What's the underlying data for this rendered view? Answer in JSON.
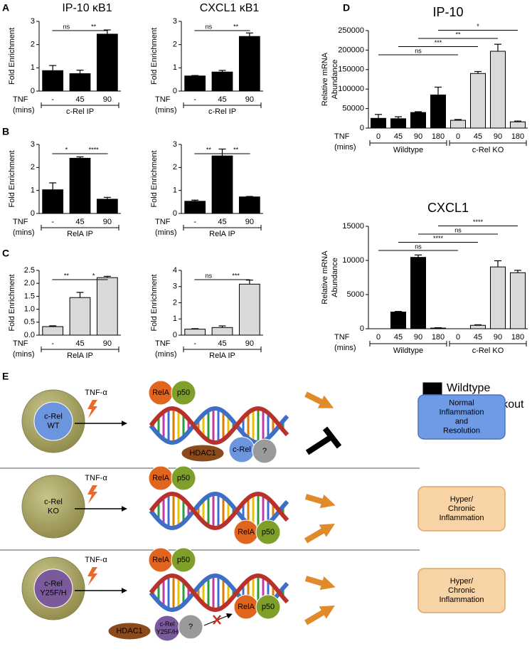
{
  "panels": [
    "A",
    "B",
    "C",
    "D",
    "E"
  ],
  "chart_data": [
    {
      "type": "bar",
      "title": "IP-10 κB1",
      "ylabel": "Fold  Enrichment",
      "x_row_label": "TNF",
      "x_row_unit": "(mins)",
      "categories": [
        "-",
        "45",
        "90"
      ],
      "values": [
        0.88,
        0.75,
        2.45
      ],
      "errors": [
        0.22,
        0.15,
        0.18
      ],
      "color": "#000000",
      "ylim": [
        0,
        3
      ],
      "yticks": [
        0,
        1,
        2,
        3
      ],
      "x_group_label": "c-Rel IP",
      "significance": [
        "ns",
        "**"
      ]
    },
    {
      "type": "bar",
      "title": "CXCL1 κB1",
      "ylabel": "Fold  Enrichment",
      "x_row_label": "TNF",
      "x_row_unit": "(mins)",
      "categories": [
        "-",
        "45",
        "90"
      ],
      "values": [
        0.65,
        0.82,
        2.35
      ],
      "errors": [
        0.02,
        0.07,
        0.15
      ],
      "color": "#000000",
      "ylim": [
        0,
        3
      ],
      "yticks": [
        0,
        1,
        2,
        3
      ],
      "x_group_label": "c-Rel IP",
      "significance": [
        "ns",
        "**"
      ]
    },
    {
      "type": "bar",
      "ylabel": "Fold  Enrichment",
      "x_row_label": "TNF",
      "x_row_unit": "(mins)",
      "categories": [
        "-",
        "45",
        "90"
      ],
      "values": [
        1.03,
        2.4,
        0.62
      ],
      "errors": [
        0.3,
        0.06,
        0.08
      ],
      "color": "#000000",
      "ylim": [
        0,
        3
      ],
      "yticks": [
        0,
        1,
        2,
        3
      ],
      "x_group_label": "RelA IP",
      "significance": [
        "*",
        "****"
      ]
    },
    {
      "type": "bar",
      "ylabel": "Fold  Enrichment",
      "x_row_label": "TNF",
      "x_row_unit": "(mins)",
      "categories": [
        "-",
        "45",
        "90"
      ],
      "values": [
        0.53,
        2.5,
        0.72
      ],
      "errors": [
        0.05,
        0.3,
        0.02
      ],
      "color": "#000000",
      "ylim": [
        0,
        3
      ],
      "yticks": [
        0,
        1,
        2,
        3
      ],
      "x_group_label": "RelA IP",
      "significance": [
        "**",
        "**"
      ]
    },
    {
      "type": "bar",
      "ylabel": "Fold  Enrichment",
      "x_row_label": "TNF",
      "x_row_unit": "(mins)",
      "categories": [
        "-",
        "45",
        "90"
      ],
      "values": [
        0.33,
        1.45,
        2.22
      ],
      "errors": [
        0.03,
        0.2,
        0.05
      ],
      "color": "#d9d9d9",
      "ylim": [
        0,
        2.5
      ],
      "yticks": [
        {
          "value": 0,
          "label": "0.0"
        },
        0.5,
        {
          "value": 1,
          "label": "1.0"
        },
        1.5,
        {
          "value": 2,
          "label": "2.0"
        },
        2.5
      ],
      "x_group_label": "RelA IP",
      "significance": [
        "**",
        "*"
      ]
    },
    {
      "type": "bar",
      "ylabel": "Fold  Enrichment",
      "x_row_label": "TNF",
      "x_row_unit": "(mins)",
      "categories": [
        "-",
        "45",
        "90"
      ],
      "values": [
        0.37,
        0.47,
        3.15
      ],
      "errors": [
        0.03,
        0.1,
        0.25
      ],
      "color": "#d9d9d9",
      "ylim": [
        0,
        4
      ],
      "yticks": [
        0,
        1,
        2,
        3,
        4
      ],
      "x_group_label": "RelA IP",
      "significance": [
        "ns",
        "***"
      ]
    },
    {
      "type": "bar",
      "title": "IP-10",
      "ylabel": [
        "Relative mRNA",
        "Abundance"
      ],
      "x_row_label": "TNF",
      "x_row_unit": "(mins)",
      "categories": [
        "0",
        "45",
        "90",
        "180",
        "0",
        "45",
        "90",
        "180"
      ],
      "values": [
        25000,
        24000,
        40000,
        85000,
        20000,
        140000,
        197000,
        16000
      ],
      "errors": [
        10000,
        5000,
        2000,
        20000,
        2000,
        5000,
        18000,
        2000
      ],
      "groups": [
        {
          "name": "Wildtype",
          "color": "#000000"
        },
        {
          "name": "c-Rel KO",
          "color": "#d9d9d9"
        }
      ],
      "ylim": [
        0,
        250000
      ],
      "yticks": [
        0,
        50000,
        100000,
        150000,
        200000,
        250000
      ],
      "significance": [
        "ns",
        "***",
        "**",
        "*"
      ]
    },
    {
      "type": "bar",
      "title": "CXCL1",
      "ylabel": [
        "Relative mRNA",
        "Abundance"
      ],
      "x_row_label": "TNF",
      "x_row_unit": "(mins)",
      "categories": [
        "0",
        "45",
        "90",
        "180",
        "0",
        "45",
        "90",
        "180"
      ],
      "values": [
        0,
        2450,
        10450,
        100,
        0,
        500,
        9050,
        8200
      ],
      "errors": [
        null,
        80,
        350,
        50,
        null,
        80,
        900,
        350
      ],
      "groups": [
        {
          "name": "Wildtype",
          "color": "#000000"
        },
        {
          "name": "c-Rel KO",
          "color": "#d9d9d9"
        }
      ],
      "ylim": [
        0,
        15000
      ],
      "yticks": [
        0,
        5000,
        10000,
        15000
      ],
      "significance": [
        "ns",
        "****",
        "ns",
        "****"
      ]
    }
  ],
  "legend": {
    "items": [
      {
        "label": "Wildtype",
        "color": "#000000"
      },
      {
        "label": "c-Rel Knockout",
        "color": "#d9d9d9"
      }
    ]
  },
  "diagram": {
    "rows": [
      {
        "cell": [
          "c-Rel",
          "WT"
        ],
        "stimulus": "TNF-α",
        "dna_top": [
          "RelA",
          "p50"
        ],
        "complex": [
          "HDAC1",
          "c-Rel",
          "?"
        ],
        "outcome": [
          "Normal",
          "Inflammation",
          "and",
          "Resolution"
        ]
      },
      {
        "cell": [
          "c-Rel",
          "KO"
        ],
        "stimulus": "TNF-α",
        "dna_top": [
          "RelA",
          "p50"
        ],
        "dna_bottom": [
          "RelA",
          "p50"
        ],
        "outcome": [
          "Hyper/",
          "Chronic",
          "Inflammation"
        ]
      },
      {
        "cell": [
          "c-Rel",
          "Y25F/H"
        ],
        "stimulus": "TNF-α",
        "dna_top": [
          "RelA",
          "p50"
        ],
        "dna_bottom": [
          "RelA",
          "p50"
        ],
        "complex": [
          "HDAC1",
          [
            "c-Rel",
            "Y25F/H"
          ],
          "?"
        ],
        "outcome": [
          "Hyper/",
          "Chronic",
          "Inflammation"
        ]
      }
    ]
  }
}
